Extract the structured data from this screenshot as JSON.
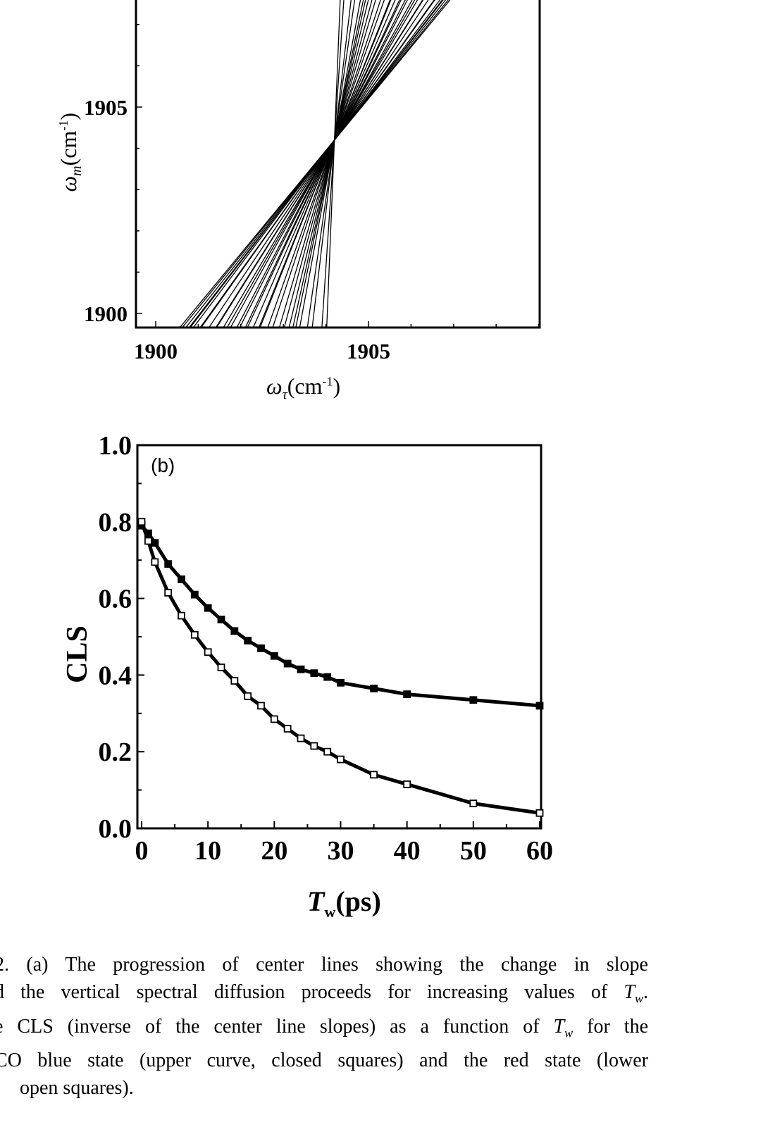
{
  "chart_data": [
    {
      "type": "line",
      "panel": "a",
      "xlabel": "ω_τ(cm-1)",
      "ylabel": "ω_m(cm-1)",
      "xlim": [
        1899.5,
        1909.0
      ],
      "ylim": [
        1899.7,
        1907.6
      ],
      "xticks": [
        1900,
        1905
      ],
      "yticks": [
        1900,
        1905
      ],
      "grid": false,
      "center_lines": {
        "center": [
          1904.2,
          1904.2
        ],
        "slopes": [
          1.25,
          1.33,
          1.44,
          1.63,
          1.8,
          1.98,
          2.17,
          2.38,
          2.6,
          2.9,
          3.13,
          3.51,
          3.85,
          4.26,
          4.65,
          5.0,
          5.56,
          7.14,
          8.7,
          15.4,
          25.0,
          1.27,
          1.3,
          1.34,
          1.37,
          1.45,
          1.54,
          1.64,
          1.74,
          1.86,
          2.04,
          2.22,
          2.56
        ]
      }
    },
    {
      "type": "line",
      "panel_label": "(b)",
      "xlabel": "T_w(ps)",
      "ylabel": "CLS",
      "xlim": [
        0,
        60
      ],
      "ylim": [
        0,
        1.0
      ],
      "xticks": [
        0,
        10,
        20,
        30,
        40,
        50,
        60
      ],
      "yticks": [
        "0.0",
        "0.2",
        "0.4",
        "0.6",
        "0.8",
        "1.0"
      ],
      "grid": false,
      "x": [
        0,
        1,
        2,
        4,
        6,
        8,
        10,
        12,
        14,
        16,
        18,
        20,
        22,
        24,
        26,
        28,
        30,
        35,
        40,
        50,
        60
      ],
      "series": [
        {
          "marker": "closed-square",
          "values": [
            0.79,
            0.77,
            0.745,
            0.69,
            0.65,
            0.61,
            0.575,
            0.545,
            0.515,
            0.49,
            0.47,
            0.45,
            0.43,
            0.415,
            0.405,
            0.395,
            0.38,
            0.365,
            0.35,
            0.335,
            0.32
          ]
        },
        {
          "marker": "open-square",
          "values": [
            0.8,
            0.75,
            0.695,
            0.615,
            0.555,
            0.505,
            0.46,
            0.42,
            0.385,
            0.345,
            0.32,
            0.285,
            0.26,
            0.235,
            0.215,
            0.2,
            0.18,
            0.14,
            0.115,
            0.065,
            0.04
          ]
        }
      ]
    }
  ],
  "labels": {
    "a_ylabel_main": "ω",
    "a_ylabel_sub": "m",
    "a_ylabel_unit": "(cm",
    "a_ylabel_sup": "-1",
    "a_ylabel_close": ")",
    "a_xlabel_main": "ω",
    "a_xlabel_sub": "τ",
    "a_xlabel_unit": "(cm",
    "a_xlabel_sup": "-1",
    "a_xlabel_close": ")",
    "b_panel": "(b)",
    "b_ylabel": "CLS",
    "b_xlabel_main": "T",
    "b_xlabel_sub": "w",
    "b_xlabel_unit": "(ps)"
  },
  "caption": {
    "lines": [
      "2. (a) The progression of center lines showing the change in slope",
      "d the vertical spectral diffusion proceeds for increasing values of T_w.",
      "e CLS (inverse of the center line slopes) as a function of T_w for the",
      "CO blue state (upper curve, closed squares) and the red state (lower",
      "open squares)."
    ]
  }
}
